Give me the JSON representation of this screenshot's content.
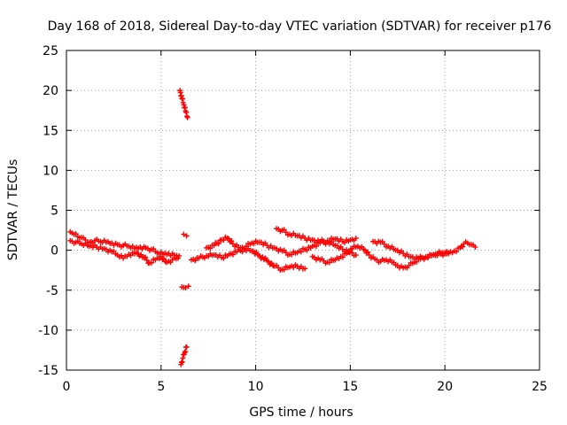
{
  "chart_data": {
    "type": "scatter",
    "title": "Day 168 of 2018, Sidereal Day-to-day VTEC variation (SDTVAR) for receiver p176",
    "xlabel": "GPS time / hours",
    "ylabel": "SDTVAR / TECUs",
    "xlim": [
      0,
      25
    ],
    "ylim": [
      -15,
      25
    ],
    "xticks": [
      0,
      5,
      10,
      15,
      20,
      25
    ],
    "yticks": [
      -15,
      -10,
      -5,
      0,
      5,
      10,
      15,
      20,
      25
    ],
    "xtick_labels": [
      "0",
      "5",
      "10",
      "15",
      "20",
      "25"
    ],
    "ytick_labels": [
      "-15",
      "-10",
      "-5",
      "0",
      "5",
      "10",
      "15",
      "20",
      "25"
    ],
    "grid": true,
    "marker": "+",
    "color": "#ff0000",
    "series": [
      {
        "name": "trace-a",
        "points": [
          [
            0.2,
            2.3
          ],
          [
            0.4,
            2.0
          ],
          [
            0.6,
            1.7
          ],
          [
            0.8,
            1.6
          ],
          [
            1.0,
            1.3
          ],
          [
            1.2,
            1.0
          ],
          [
            1.5,
            1.2
          ],
          [
            1.8,
            1.1
          ],
          [
            2.1,
            1.0
          ],
          [
            2.4,
            0.9
          ],
          [
            2.7,
            0.7
          ],
          [
            3.0,
            0.6
          ],
          [
            3.3,
            0.5
          ],
          [
            3.6,
            0.2
          ],
          [
            3.9,
            0.4
          ],
          [
            4.2,
            0.3
          ],
          [
            4.5,
            0.1
          ],
          [
            4.8,
            -0.3
          ],
          [
            5.1,
            -0.5
          ],
          [
            5.4,
            -0.4
          ],
          [
            5.7,
            -0.6
          ],
          [
            5.95,
            -0.7
          ]
        ]
      },
      {
        "name": "trace-b",
        "points": [
          [
            0.2,
            1.2
          ],
          [
            0.5,
            1.0
          ],
          [
            0.8,
            0.8
          ],
          [
            1.2,
            0.5
          ],
          [
            1.6,
            0.4
          ],
          [
            2.0,
            0.2
          ],
          [
            2.4,
            -0.2
          ],
          [
            2.7,
            -0.6
          ],
          [
            3.0,
            -1.0
          ],
          [
            3.3,
            -0.5
          ],
          [
            3.7,
            -0.3
          ],
          [
            4.1,
            -0.9
          ],
          [
            4.4,
            -1.6
          ],
          [
            4.7,
            -1.2
          ],
          [
            5.0,
            -0.8
          ],
          [
            5.3,
            -1.5
          ],
          [
            5.6,
            -1.2
          ],
          [
            5.9,
            -1.0
          ]
        ]
      },
      {
        "name": "trace-c",
        "points": [
          [
            6.0,
            20.0
          ],
          [
            6.1,
            19.0
          ],
          [
            6.2,
            18.2
          ],
          [
            6.3,
            17.4
          ],
          [
            6.4,
            16.6
          ]
        ]
      },
      {
        "name": "trace-d",
        "points": [
          [
            6.1,
            -4.6
          ],
          [
            6.3,
            -4.7
          ],
          [
            6.45,
            -4.5
          ]
        ]
      },
      {
        "name": "trace-e",
        "points": [
          [
            6.2,
            2.0
          ],
          [
            6.35,
            1.8
          ]
        ]
      },
      {
        "name": "trace-f",
        "points": [
          [
            6.05,
            -14.3
          ],
          [
            6.15,
            -13.5
          ],
          [
            6.25,
            -12.8
          ],
          [
            6.35,
            -12.1
          ]
        ]
      },
      {
        "name": "trace-g",
        "points": [
          [
            6.6,
            -1.2
          ],
          [
            7.0,
            -1.0
          ],
          [
            7.4,
            -0.7
          ],
          [
            7.8,
            -0.6
          ],
          [
            8.2,
            -0.9
          ],
          [
            8.6,
            -0.5
          ],
          [
            9.0,
            -0.2
          ],
          [
            9.4,
            0.1
          ],
          [
            9.8,
            -0.1
          ],
          [
            10.2,
            -0.7
          ],
          [
            10.6,
            -1.3
          ],
          [
            11.0,
            -2.0
          ],
          [
            11.4,
            -2.4
          ],
          [
            11.8,
            -2.1
          ],
          [
            12.2,
            -2.0
          ],
          [
            12.6,
            -2.3
          ]
        ]
      },
      {
        "name": "trace-h",
        "points": [
          [
            7.4,
            0.3
          ],
          [
            7.8,
            0.6
          ],
          [
            8.2,
            1.3
          ],
          [
            8.5,
            1.5
          ],
          [
            8.8,
            0.8
          ],
          [
            9.2,
            0.3
          ],
          [
            9.5,
            0.5
          ],
          [
            9.8,
            0.9
          ],
          [
            10.2,
            1.0
          ],
          [
            10.6,
            0.6
          ],
          [
            11.0,
            0.3
          ],
          [
            11.4,
            -0.1
          ],
          [
            11.8,
            -0.5
          ],
          [
            12.2,
            -0.3
          ],
          [
            12.6,
            0.1
          ],
          [
            13.0,
            0.5
          ],
          [
            13.4,
            0.9
          ],
          [
            13.8,
            1.0
          ],
          [
            14.2,
            0.6
          ],
          [
            14.6,
            0.1
          ],
          [
            15.0,
            -0.2
          ],
          [
            15.3,
            -0.6
          ]
        ]
      },
      {
        "name": "trace-i",
        "points": [
          [
            11.1,
            2.7
          ],
          [
            11.4,
            2.5
          ],
          [
            11.8,
            2.0
          ],
          [
            12.2,
            1.8
          ],
          [
            12.6,
            1.5
          ],
          [
            13.0,
            1.3
          ],
          [
            13.4,
            1.1
          ],
          [
            13.8,
            1.2
          ],
          [
            14.2,
            1.4
          ],
          [
            14.6,
            1.1
          ],
          [
            15.0,
            1.3
          ],
          [
            15.3,
            1.5
          ]
        ]
      },
      {
        "name": "trace-j",
        "points": [
          [
            13.0,
            -0.8
          ],
          [
            13.4,
            -1.2
          ],
          [
            13.8,
            -1.5
          ],
          [
            14.2,
            -1.2
          ],
          [
            14.5,
            -0.8
          ],
          [
            14.8,
            -0.4
          ],
          [
            15.1,
            0.2
          ],
          [
            15.4,
            0.5
          ],
          [
            15.7,
            0.1
          ],
          [
            16.0,
            -0.6
          ],
          [
            16.3,
            -1.1
          ],
          [
            16.6,
            -1.4
          ],
          [
            16.9,
            -1.2
          ],
          [
            17.2,
            -1.5
          ],
          [
            17.5,
            -1.9
          ],
          [
            17.8,
            -2.2
          ],
          [
            18.1,
            -1.9
          ],
          [
            18.4,
            -1.5
          ],
          [
            18.7,
            -1.1
          ],
          [
            19.0,
            -0.8
          ],
          [
            19.3,
            -0.6
          ],
          [
            19.6,
            -0.4
          ],
          [
            19.9,
            -0.3
          ],
          [
            20.2,
            -0.4
          ],
          [
            20.5,
            -0.1
          ],
          [
            20.8,
            0.3
          ],
          [
            21.0,
            0.8
          ],
          [
            21.2,
            0.9
          ],
          [
            21.4,
            0.7
          ],
          [
            21.6,
            0.4
          ]
        ]
      },
      {
        "name": "trace-k",
        "points": [
          [
            16.2,
            1.1
          ],
          [
            16.6,
            1.0
          ],
          [
            17.0,
            0.5
          ],
          [
            17.4,
            0.0
          ],
          [
            17.8,
            -0.4
          ],
          [
            18.2,
            -0.8
          ],
          [
            18.6,
            -1.0
          ],
          [
            19.0,
            -0.9
          ],
          [
            19.4,
            -0.6
          ],
          [
            19.8,
            -0.5
          ],
          [
            20.2,
            -0.3
          ]
        ]
      }
    ]
  }
}
